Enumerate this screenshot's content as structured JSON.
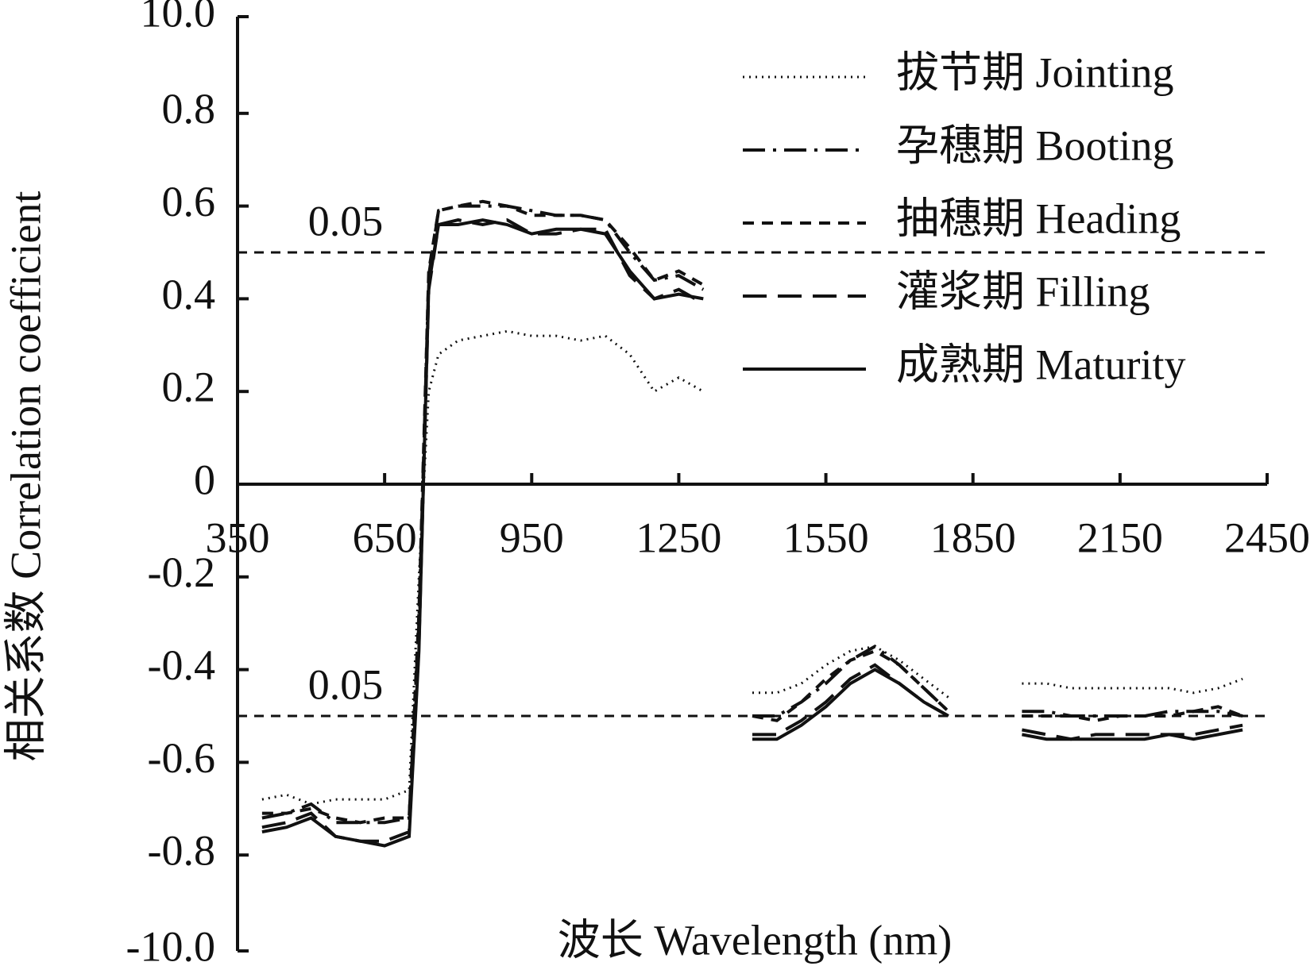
{
  "chart_data": {
    "type": "line",
    "x_label": "波长 Wavelength (nm)",
    "y_label": "相关系数 Correlation coefficient",
    "xlim": [
      350,
      2450
    ],
    "xticks": [
      350,
      650,
      950,
      1250,
      1550,
      1850,
      2150,
      2450
    ],
    "ylim": [
      -10,
      10
    ],
    "yticks": [
      {
        "value": 10,
        "label": "10.0"
      },
      0.8,
      0.6,
      0.4,
      0.2,
      0,
      -0.2,
      -0.4,
      -0.6,
      -0.8,
      {
        "value": -10,
        "label": "-10.0"
      }
    ],
    "reference_lines": [
      {
        "value": 0.5,
        "label": "0.05"
      },
      {
        "value": -0.5,
        "label": "0.05"
      }
    ],
    "legend": "upper right",
    "x": [
      400,
      450,
      500,
      550,
      600,
      650,
      700,
      720,
      740,
      760,
      800,
      850,
      900,
      950,
      1000,
      1050,
      1100,
      1150,
      1200,
      1250,
      1300,
      1350,
      1400,
      1450,
      1500,
      1550,
      1600,
      1650,
      1700,
      1750,
      1800,
      1875,
      1950,
      2000,
      2050,
      2100,
      2150,
      2200,
      2250,
      2300,
      2350,
      2400
    ],
    "series": [
      {
        "name": "拔节期 Jointing",
        "color": "#111111",
        "dash": "dotted",
        "values": [
          -0.68,
          -0.67,
          -0.69,
          -0.68,
          -0.68,
          -0.68,
          -0.66,
          -0.2,
          0.2,
          0.28,
          0.31,
          0.32,
          0.33,
          0.32,
          0.32,
          0.31,
          0.32,
          0.28,
          0.2,
          0.23,
          0.2,
          null,
          -0.45,
          -0.45,
          -0.43,
          -0.39,
          -0.36,
          -0.35,
          -0.38,
          -0.42,
          -0.46,
          null,
          -0.43,
          -0.43,
          -0.44,
          -0.44,
          -0.44,
          -0.44,
          -0.44,
          -0.45,
          -0.44,
          -0.42
        ]
      },
      {
        "name": "孕穗期 Booting",
        "color": "#111111",
        "dash": "dash-dot",
        "values": [
          -0.72,
          -0.71,
          -0.69,
          -0.73,
          -0.73,
          -0.73,
          -0.72,
          -0.3,
          0.45,
          0.59,
          0.6,
          0.6,
          0.6,
          0.59,
          0.58,
          0.58,
          0.57,
          0.5,
          0.44,
          0.45,
          0.42,
          null,
          -0.5,
          -0.5,
          -0.47,
          -0.43,
          -0.38,
          -0.35,
          -0.39,
          -0.44,
          -0.49,
          null,
          -0.49,
          -0.49,
          -0.5,
          -0.5,
          -0.5,
          -0.5,
          -0.49,
          -0.49,
          -0.49,
          -0.5
        ]
      },
      {
        "name": "抽穗期 Heading",
        "color": "#111111",
        "dash": "dashed",
        "values": [
          -0.71,
          -0.71,
          -0.7,
          -0.72,
          -0.73,
          -0.72,
          -0.72,
          -0.28,
          0.46,
          0.59,
          0.6,
          0.61,
          0.6,
          0.58,
          0.58,
          0.58,
          0.57,
          0.51,
          0.44,
          0.46,
          0.43,
          null,
          -0.5,
          -0.51,
          -0.47,
          -0.42,
          -0.38,
          -0.36,
          -0.39,
          -0.44,
          -0.49,
          null,
          -0.5,
          -0.5,
          -0.5,
          -0.51,
          -0.5,
          -0.5,
          -0.5,
          -0.49,
          -0.48,
          -0.5
        ]
      },
      {
        "name": "灌浆期 Filling",
        "color": "#111111",
        "dash": "long-dash",
        "values": [
          -0.74,
          -0.73,
          -0.71,
          -0.76,
          -0.77,
          -0.77,
          -0.75,
          -0.35,
          0.42,
          0.56,
          0.57,
          0.56,
          0.57,
          0.54,
          0.54,
          0.55,
          0.55,
          0.45,
          0.4,
          0.42,
          0.39,
          null,
          -0.54,
          -0.54,
          -0.51,
          -0.47,
          -0.42,
          -0.39,
          -0.43,
          -0.47,
          -0.5,
          null,
          -0.53,
          -0.54,
          -0.55,
          -0.54,
          -0.54,
          -0.54,
          -0.54,
          -0.54,
          -0.53,
          -0.52
        ]
      },
      {
        "name": "成熟期 Maturity",
        "color": "#111111",
        "dash": "solid",
        "values": [
          -0.75,
          -0.74,
          -0.72,
          -0.76,
          -0.77,
          -0.78,
          -0.76,
          -0.36,
          0.43,
          0.56,
          0.56,
          0.57,
          0.56,
          0.54,
          0.55,
          0.55,
          0.54,
          0.46,
          0.4,
          0.41,
          0.4,
          null,
          -0.55,
          -0.55,
          -0.52,
          -0.48,
          -0.43,
          -0.4,
          -0.43,
          -0.47,
          -0.5,
          null,
          -0.54,
          -0.55,
          -0.55,
          -0.55,
          -0.55,
          -0.55,
          -0.54,
          -0.55,
          -0.54,
          -0.53
        ]
      }
    ]
  }
}
